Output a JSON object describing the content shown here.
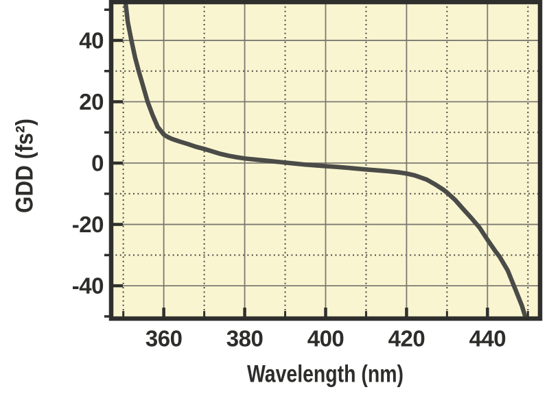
{
  "style": {
    "page_background": "#ffffff",
    "plot_background": "#f9f5d1",
    "frame_color": "#2f2f2d",
    "major_grid_color": "#7a7970",
    "minor_grid_color": "#45453f",
    "curve_color": "#4b4b48",
    "text_color": "#2d2d2b"
  },
  "chart_data": {
    "type": "line",
    "title": "",
    "xlabel": "Wavelength (nm)",
    "ylabel": "GDD (fs²)",
    "xlim": [
      347,
      453
    ],
    "ylim": [
      -50.7,
      52.5
    ],
    "grid": {
      "major": "solid",
      "minor": "dotted"
    },
    "legend_position": "none",
    "x_major_ticks": [
      360,
      380,
      400,
      420,
      440
    ],
    "x_tick_labels": [
      "360",
      "380",
      "400",
      "420",
      "440"
    ],
    "x_minor_ticks": [
      350,
      370,
      390,
      410,
      430,
      450
    ],
    "y_major_ticks": [
      40,
      20,
      0,
      -20,
      -40
    ],
    "y_tick_labels": [
      "40",
      "20",
      "0",
      "-20",
      "-40"
    ],
    "y_minor_ticks": [
      50,
      30,
      10,
      -10,
      -30,
      -50
    ],
    "y_minor_gridlines": [
      30,
      10,
      -10,
      -30
    ],
    "series": [
      {
        "name": "GDD",
        "color": "#4b4b48",
        "points": [
          [
            350.5,
            53
          ],
          [
            351.1,
            46
          ],
          [
            352,
            40
          ],
          [
            352.9,
            34.5
          ],
          [
            353.8,
            30
          ],
          [
            354.8,
            25.5
          ],
          [
            356,
            20
          ],
          [
            357.2,
            15.8
          ],
          [
            358.5,
            11.8
          ],
          [
            360,
            9.3
          ],
          [
            361,
            8.5
          ],
          [
            362,
            7.9
          ],
          [
            364,
            7.0
          ],
          [
            366,
            6.2
          ],
          [
            368,
            5.3
          ],
          [
            370,
            4.6
          ],
          [
            372,
            3.8
          ],
          [
            374,
            3.0
          ],
          [
            376,
            2.4
          ],
          [
            378,
            1.9
          ],
          [
            380,
            1.5
          ],
          [
            383,
            1.1
          ],
          [
            386,
            0.7
          ],
          [
            389,
            0.3
          ],
          [
            392,
            -0.1
          ],
          [
            395,
            -0.5
          ],
          [
            398,
            -0.8
          ],
          [
            400,
            -1.0
          ],
          [
            403,
            -1.3
          ],
          [
            406,
            -1.6
          ],
          [
            410,
            -2.1
          ],
          [
            413,
            -2.4
          ],
          [
            415,
            -2.6
          ],
          [
            418,
            -3.0
          ],
          [
            420,
            -3.4
          ],
          [
            422,
            -4.0
          ],
          [
            425,
            -5.4
          ],
          [
            427,
            -6.9
          ],
          [
            429,
            -8.6
          ],
          [
            430,
            -9.6
          ],
          [
            432,
            -12.0
          ],
          [
            434,
            -15.0
          ],
          [
            436,
            -17.9
          ],
          [
            438,
            -21.0
          ],
          [
            440,
            -25.0
          ],
          [
            442,
            -28.8
          ],
          [
            443,
            -30.5
          ],
          [
            445,
            -35.0
          ],
          [
            447,
            -41.5
          ],
          [
            448.5,
            -46.5
          ],
          [
            449.8,
            -52
          ]
        ]
      }
    ]
  }
}
